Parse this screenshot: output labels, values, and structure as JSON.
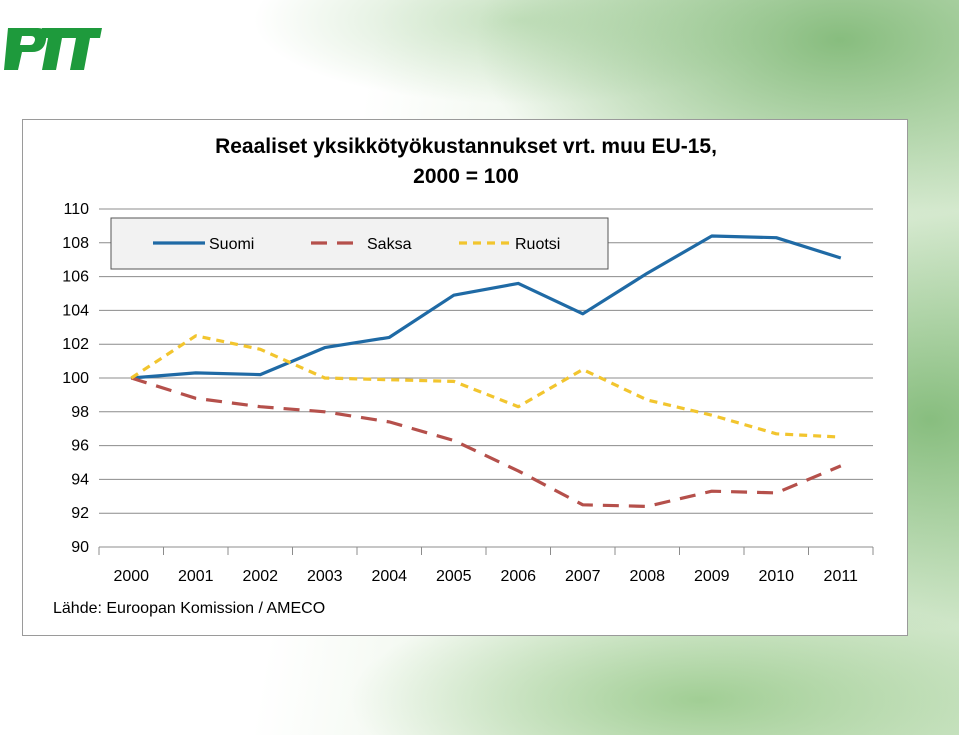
{
  "logo": {
    "text": "PTT",
    "color": "#1e9a3c"
  },
  "chart_data": {
    "type": "line",
    "title_line1": "Reaaliset yksikkötyökustannukset  vrt. muu EU-15,",
    "title_line2": "2000 = 100",
    "xlabel": "",
    "ylabel": "",
    "x": [
      "2000",
      "2001",
      "2002",
      "2003",
      "2004",
      "2005",
      "2006",
      "2007",
      "2008",
      "2009",
      "2010",
      "2011"
    ],
    "ylim": [
      90,
      110
    ],
    "yticks": [
      90,
      92,
      94,
      96,
      98,
      100,
      102,
      104,
      106,
      108,
      110
    ],
    "grid": "horizontal",
    "legend_position": "top-left",
    "series": [
      {
        "name": "Suomi",
        "color": "#1f6aa5",
        "dash": "solid",
        "values": [
          100.0,
          100.3,
          100.2,
          101.8,
          102.4,
          104.9,
          105.6,
          103.8,
          106.2,
          108.4,
          108.3,
          107.1
        ]
      },
      {
        "name": "Saksa",
        "color": "#b5504b",
        "dash": "long",
        "values": [
          100.0,
          98.8,
          98.3,
          98.0,
          97.4,
          96.3,
          94.5,
          92.5,
          92.4,
          93.3,
          93.2,
          94.8
        ]
      },
      {
        "name": "Ruotsi",
        "color": "#f2c52e",
        "dash": "short",
        "values": [
          100.0,
          102.5,
          101.7,
          100.0,
          99.9,
          99.8,
          98.3,
          100.5,
          98.7,
          97.8,
          96.7,
          96.5
        ]
      }
    ],
    "source": "Lähde: Euroopan Komission / AMECO"
  }
}
